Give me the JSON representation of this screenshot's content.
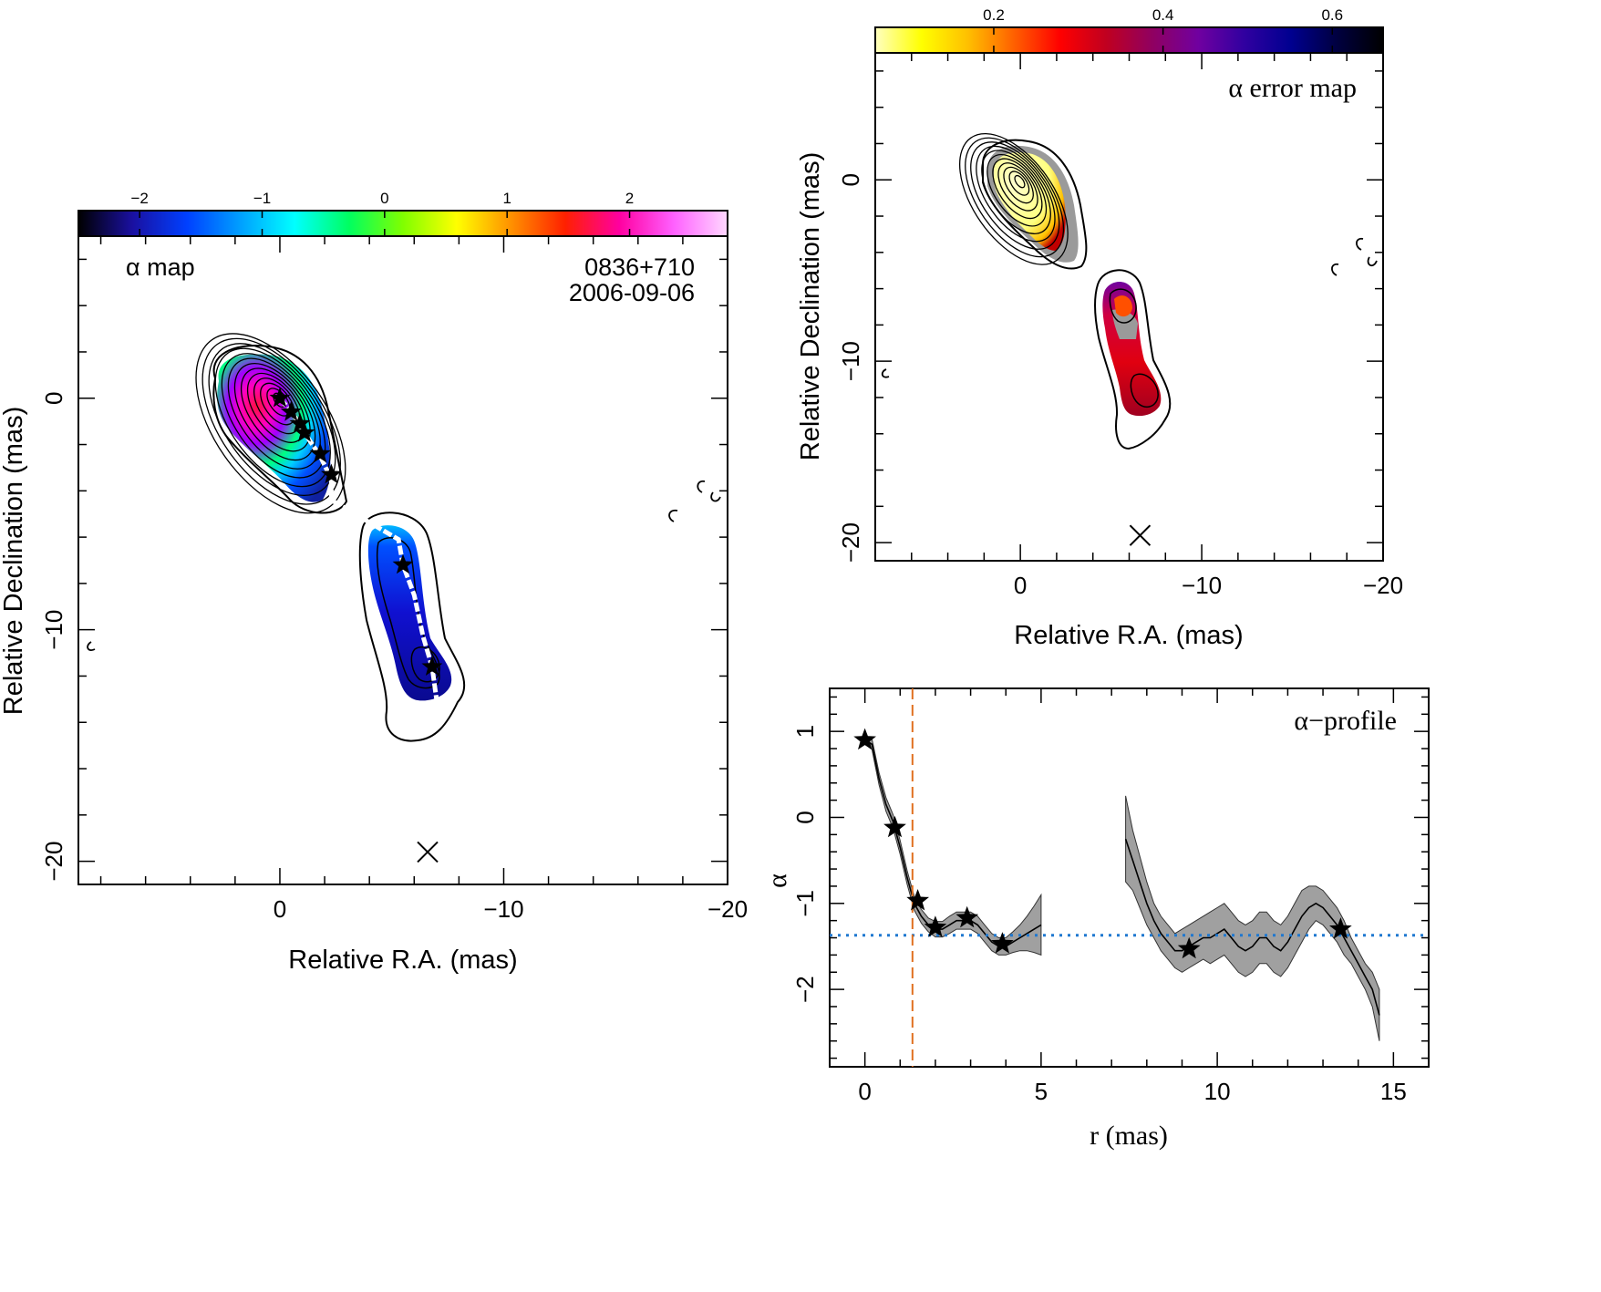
{
  "chart_data": [
    {
      "id": "alpha-map",
      "type": "heatmap",
      "title": "α map",
      "source": "0836+710",
      "date": "2006-09-06",
      "xlabel": "Relative R.A. (mas)",
      "ylabel": "Relative Declination (mas)",
      "xlim": [
        9,
        -20
      ],
      "ylim": [
        -21,
        7
      ],
      "x_ticks": [
        0,
        -10,
        -20
      ],
      "y_ticks": [
        0,
        -10,
        -20
      ],
      "colorbar": {
        "range": [
          -2.5,
          2.8
        ],
        "ticks": [
          -2,
          -1,
          0,
          1,
          2
        ],
        "colors": [
          "#000000",
          "#1a10a0",
          "#0040ff",
          "#00a0ff",
          "#00ffff",
          "#00ff60",
          "#80ff00",
          "#ffff00",
          "#ff9000",
          "#ff2000",
          "#ff00a0",
          "#ff60ff",
          "#ffd8ff"
        ]
      },
      "stars": [
        [
          0,
          0
        ],
        [
          -0.5,
          -0.6
        ],
        [
          -0.9,
          -1.1
        ],
        [
          -1.1,
          -1.5
        ],
        [
          -1.8,
          -2.4
        ],
        [
          -2.3,
          -3.3
        ],
        [
          -5.5,
          -7.2
        ],
        [
          -6.8,
          -11.6
        ]
      ],
      "ridge_line": [
        [
          0,
          0
        ],
        [
          -0.6,
          -0.7
        ],
        [
          -1.1,
          -1.5
        ],
        [
          -1.8,
          -2.5
        ],
        [
          -2.3,
          -3.5
        ],
        [
          -2.3,
          -4.4
        ],
        [
          -5.3,
          -6.1
        ],
        [
          -5.5,
          -7.2
        ],
        [
          -6.0,
          -8.5
        ],
        [
          -6.4,
          -10.3
        ],
        [
          -6.8,
          -11.6
        ],
        [
          -7.0,
          -13.0
        ]
      ],
      "beam": {
        "x": -6.6,
        "y": -19.6
      }
    },
    {
      "id": "error-map",
      "type": "heatmap",
      "title": "α error map",
      "xlabel": "Relative R.A. (mas)",
      "ylabel": "Relative Declination (mas)",
      "xlim": [
        8,
        -20
      ],
      "ylim": [
        -21,
        7
      ],
      "x_ticks": [
        0,
        -10,
        -20
      ],
      "y_ticks": [
        0,
        -10,
        -20
      ],
      "colorbar": {
        "range": [
          0.06,
          0.66
        ],
        "ticks": [
          0.2,
          0.4,
          0.6
        ],
        "colors": [
          "#ffffc0",
          "#ffff00",
          "#ffc000",
          "#ff6000",
          "#ff0000",
          "#c00020",
          "#900060",
          "#7000a0",
          "#3000a0",
          "#000090",
          "#000040",
          "#000000"
        ]
      },
      "beam": {
        "x": -6.6,
        "y": -19.6
      }
    },
    {
      "id": "alpha-profile",
      "type": "line",
      "title": "α−profile",
      "xlabel": "r (mas)",
      "ylabel": "α",
      "xlim": [
        -1,
        16
      ],
      "ylim": [
        -2.9,
        1.5
      ],
      "x_ticks": [
        0,
        5,
        10,
        15
      ],
      "y_ticks": [
        1,
        0,
        -1,
        -2
      ],
      "series": [
        {
          "x": [
            0,
            0.2,
            0.4,
            0.6,
            0.8,
            1.0,
            1.2,
            1.4,
            1.6,
            1.8,
            2.0,
            2.2,
            2.4,
            2.6,
            2.8,
            3.0,
            3.2,
            3.4,
            3.6,
            3.8,
            4.0,
            4.2,
            4.4,
            4.6,
            4.8,
            5.0
          ],
          "y": [
            0.9,
            0.85,
            0.45,
            0.15,
            -0.05,
            -0.35,
            -0.7,
            -1.0,
            -1.15,
            -1.25,
            -1.3,
            -1.3,
            -1.25,
            -1.2,
            -1.2,
            -1.2,
            -1.25,
            -1.35,
            -1.45,
            -1.5,
            -1.5,
            -1.45,
            -1.4,
            -1.35,
            -1.3,
            -1.25
          ],
          "err": [
            0.05,
            0.06,
            0.07,
            0.08,
            0.08,
            0.08,
            0.08,
            0.08,
            0.08,
            0.08,
            0.09,
            0.09,
            0.1,
            0.1,
            0.1,
            0.1,
            0.1,
            0.1,
            0.1,
            0.1,
            0.1,
            0.12,
            0.15,
            0.2,
            0.27,
            0.35
          ]
        },
        {
          "x": [
            7.4,
            7.6,
            7.8,
            8.0,
            8.2,
            8.4,
            8.6,
            8.8,
            9.0,
            9.2,
            9.4,
            9.6,
            9.8,
            10.0,
            10.2,
            10.4,
            10.6,
            10.8,
            11.0,
            11.2,
            11.4,
            11.6,
            11.8,
            12.0,
            12.2,
            12.4,
            12.6,
            12.8,
            13.0,
            13.2,
            13.4,
            13.6,
            13.8,
            14.0,
            14.2,
            14.4,
            14.6
          ],
          "y": [
            -0.25,
            -0.5,
            -0.75,
            -1.0,
            -1.2,
            -1.35,
            -1.45,
            -1.55,
            -1.55,
            -1.5,
            -1.45,
            -1.4,
            -1.4,
            -1.35,
            -1.3,
            -1.4,
            -1.5,
            -1.55,
            -1.5,
            -1.4,
            -1.4,
            -1.5,
            -1.55,
            -1.45,
            -1.3,
            -1.15,
            -1.05,
            -1.0,
            -1.05,
            -1.15,
            -1.25,
            -1.4,
            -1.55,
            -1.7,
            -1.85,
            -2.0,
            -2.3
          ],
          "err": [
            0.5,
            0.35,
            0.3,
            0.25,
            0.2,
            0.2,
            0.2,
            0.2,
            0.25,
            0.25,
            0.25,
            0.25,
            0.3,
            0.3,
            0.3,
            0.3,
            0.3,
            0.3,
            0.3,
            0.3,
            0.3,
            0.3,
            0.3,
            0.3,
            0.3,
            0.3,
            0.25,
            0.2,
            0.2,
            0.2,
            0.2,
            0.2,
            0.15,
            0.15,
            0.15,
            0.2,
            0.3
          ]
        }
      ],
      "stars": [
        [
          0,
          0.9
        ],
        [
          0.85,
          -0.12
        ],
        [
          1.5,
          -0.97
        ],
        [
          2.0,
          -1.28
        ],
        [
          2.9,
          -1.17
        ],
        [
          3.9,
          -1.47
        ],
        [
          9.2,
          -1.53
        ],
        [
          13.5,
          -1.3
        ]
      ],
      "hline": -1.37,
      "vline": 1.35
    }
  ]
}
